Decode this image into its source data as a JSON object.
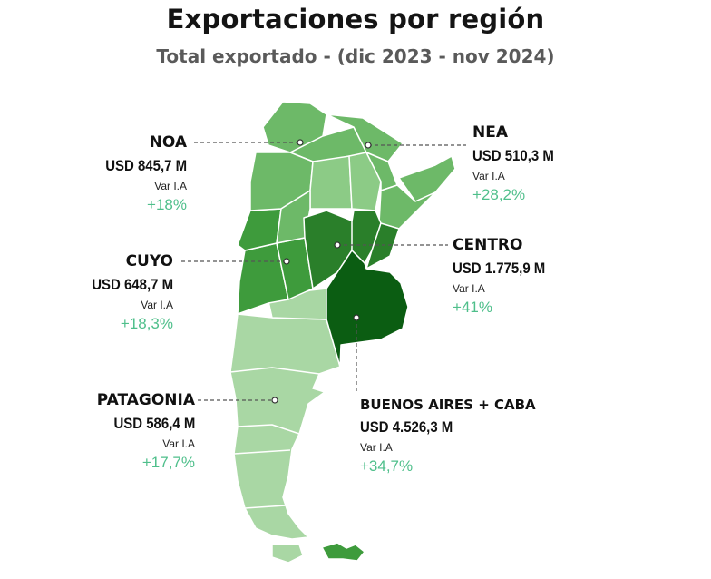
{
  "title": "Exportaciones por región",
  "subtitle": "Total exportado - (dic 2023 - nov 2024)",
  "var_label": "Var I.A",
  "colors": {
    "very_light": "#a9d7a4",
    "light": "#8ccb86",
    "medium_light": "#6db968",
    "medium": "#3e9b3c",
    "dark": "#2a7f2a",
    "darkest": "#0b5d12",
    "percent": "#4fbf8b",
    "border": "#ffffff"
  },
  "regions": {
    "noa": {
      "name": "NOA",
      "value": "USD 845,7 M",
      "variation": "+18%"
    },
    "nea": {
      "name": "NEA",
      "value": "USD 510,3 M",
      "variation": "+28,2%"
    },
    "cuyo": {
      "name": "CUYO",
      "value": "USD 648,7 M",
      "variation": "+18,3%"
    },
    "centro": {
      "name": "CENTRO",
      "value": "USD 1.775,9 M",
      "variation": "+41%"
    },
    "patagonia": {
      "name": "PATAGONIA",
      "value": "USD 586,4 M",
      "variation": "+17,7%"
    },
    "buenos_aires": {
      "name": "BUENOS AIRES + CABA",
      "value": "USD 4.526,3 M",
      "variation": "+34,7%"
    }
  }
}
